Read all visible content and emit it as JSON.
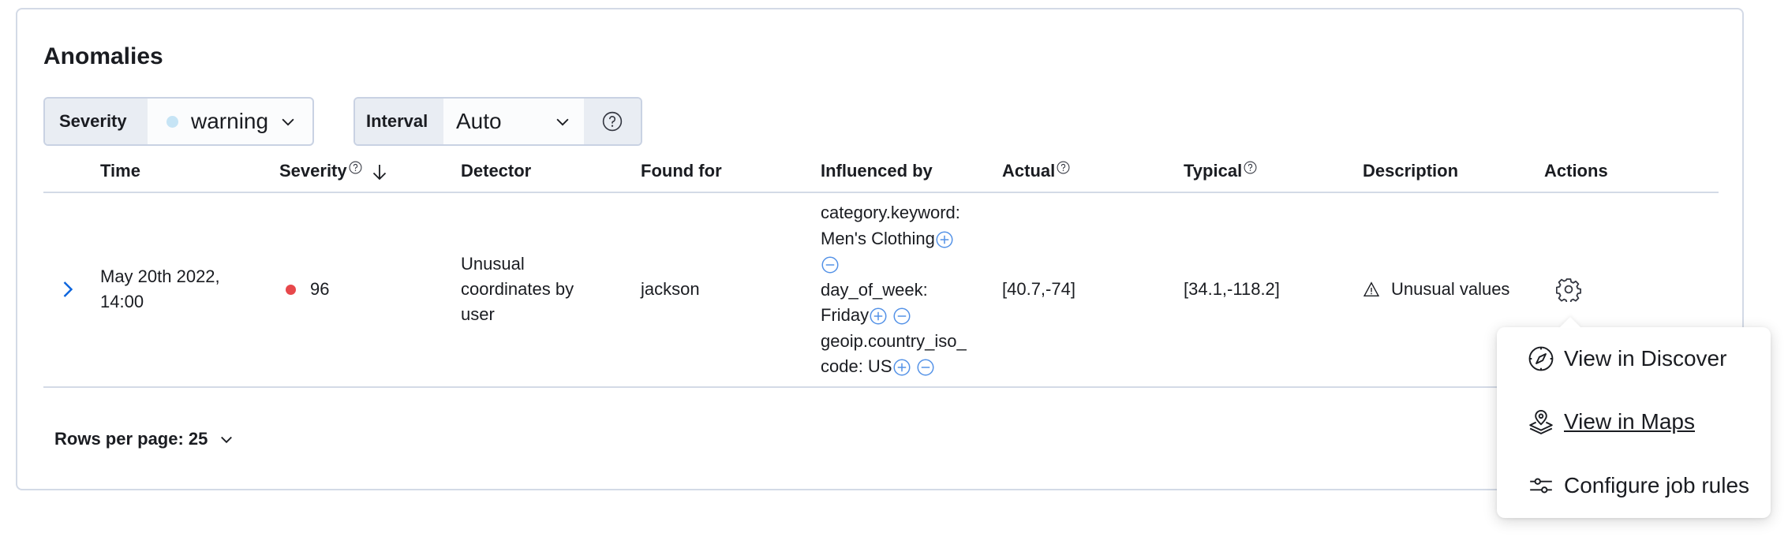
{
  "panel": {
    "title": "Anomalies"
  },
  "controls": {
    "severity_label": "Severity",
    "severity_value": "warning",
    "severity_color": "#c6e4f5",
    "interval_label": "Interval",
    "interval_value": "Auto",
    "help_icon": "question-circle-icon"
  },
  "table": {
    "columns": [
      "Time",
      "Severity",
      "Detector",
      "Found for",
      "Influenced by",
      "Actual",
      "Typical",
      "Description",
      "Actions"
    ],
    "sort": {
      "column": "Severity",
      "direction": "descending"
    },
    "rows": [
      {
        "time_line1": "May 20th 2022,",
        "time_line2": "14:00",
        "severity": "96",
        "severity_color": "#e7484b",
        "detector_lines": [
          "Unusual",
          "coordinates by",
          "user"
        ],
        "found_for": "jackson",
        "influencers": [
          {
            "line1": "category.keyword:",
            "line2": "Men's Clothing"
          },
          {
            "line1": "day_of_week:",
            "line2": "Friday"
          },
          {
            "line1": "geoip.country_iso_",
            "line2": "code: US"
          }
        ],
        "actual": "[40.7,-74]",
        "typical": "[34.1,-118.2]",
        "description": "Unusual values"
      }
    ]
  },
  "pagination": {
    "rows_per_page": "Rows per page: 25"
  },
  "actions_menu": {
    "items": [
      {
        "label": "View in Discover",
        "icon": "compass-icon"
      },
      {
        "label": "View in Maps",
        "icon": "map-layers-icon"
      },
      {
        "label": "Configure job rules",
        "icon": "sliders-icon"
      }
    ]
  }
}
